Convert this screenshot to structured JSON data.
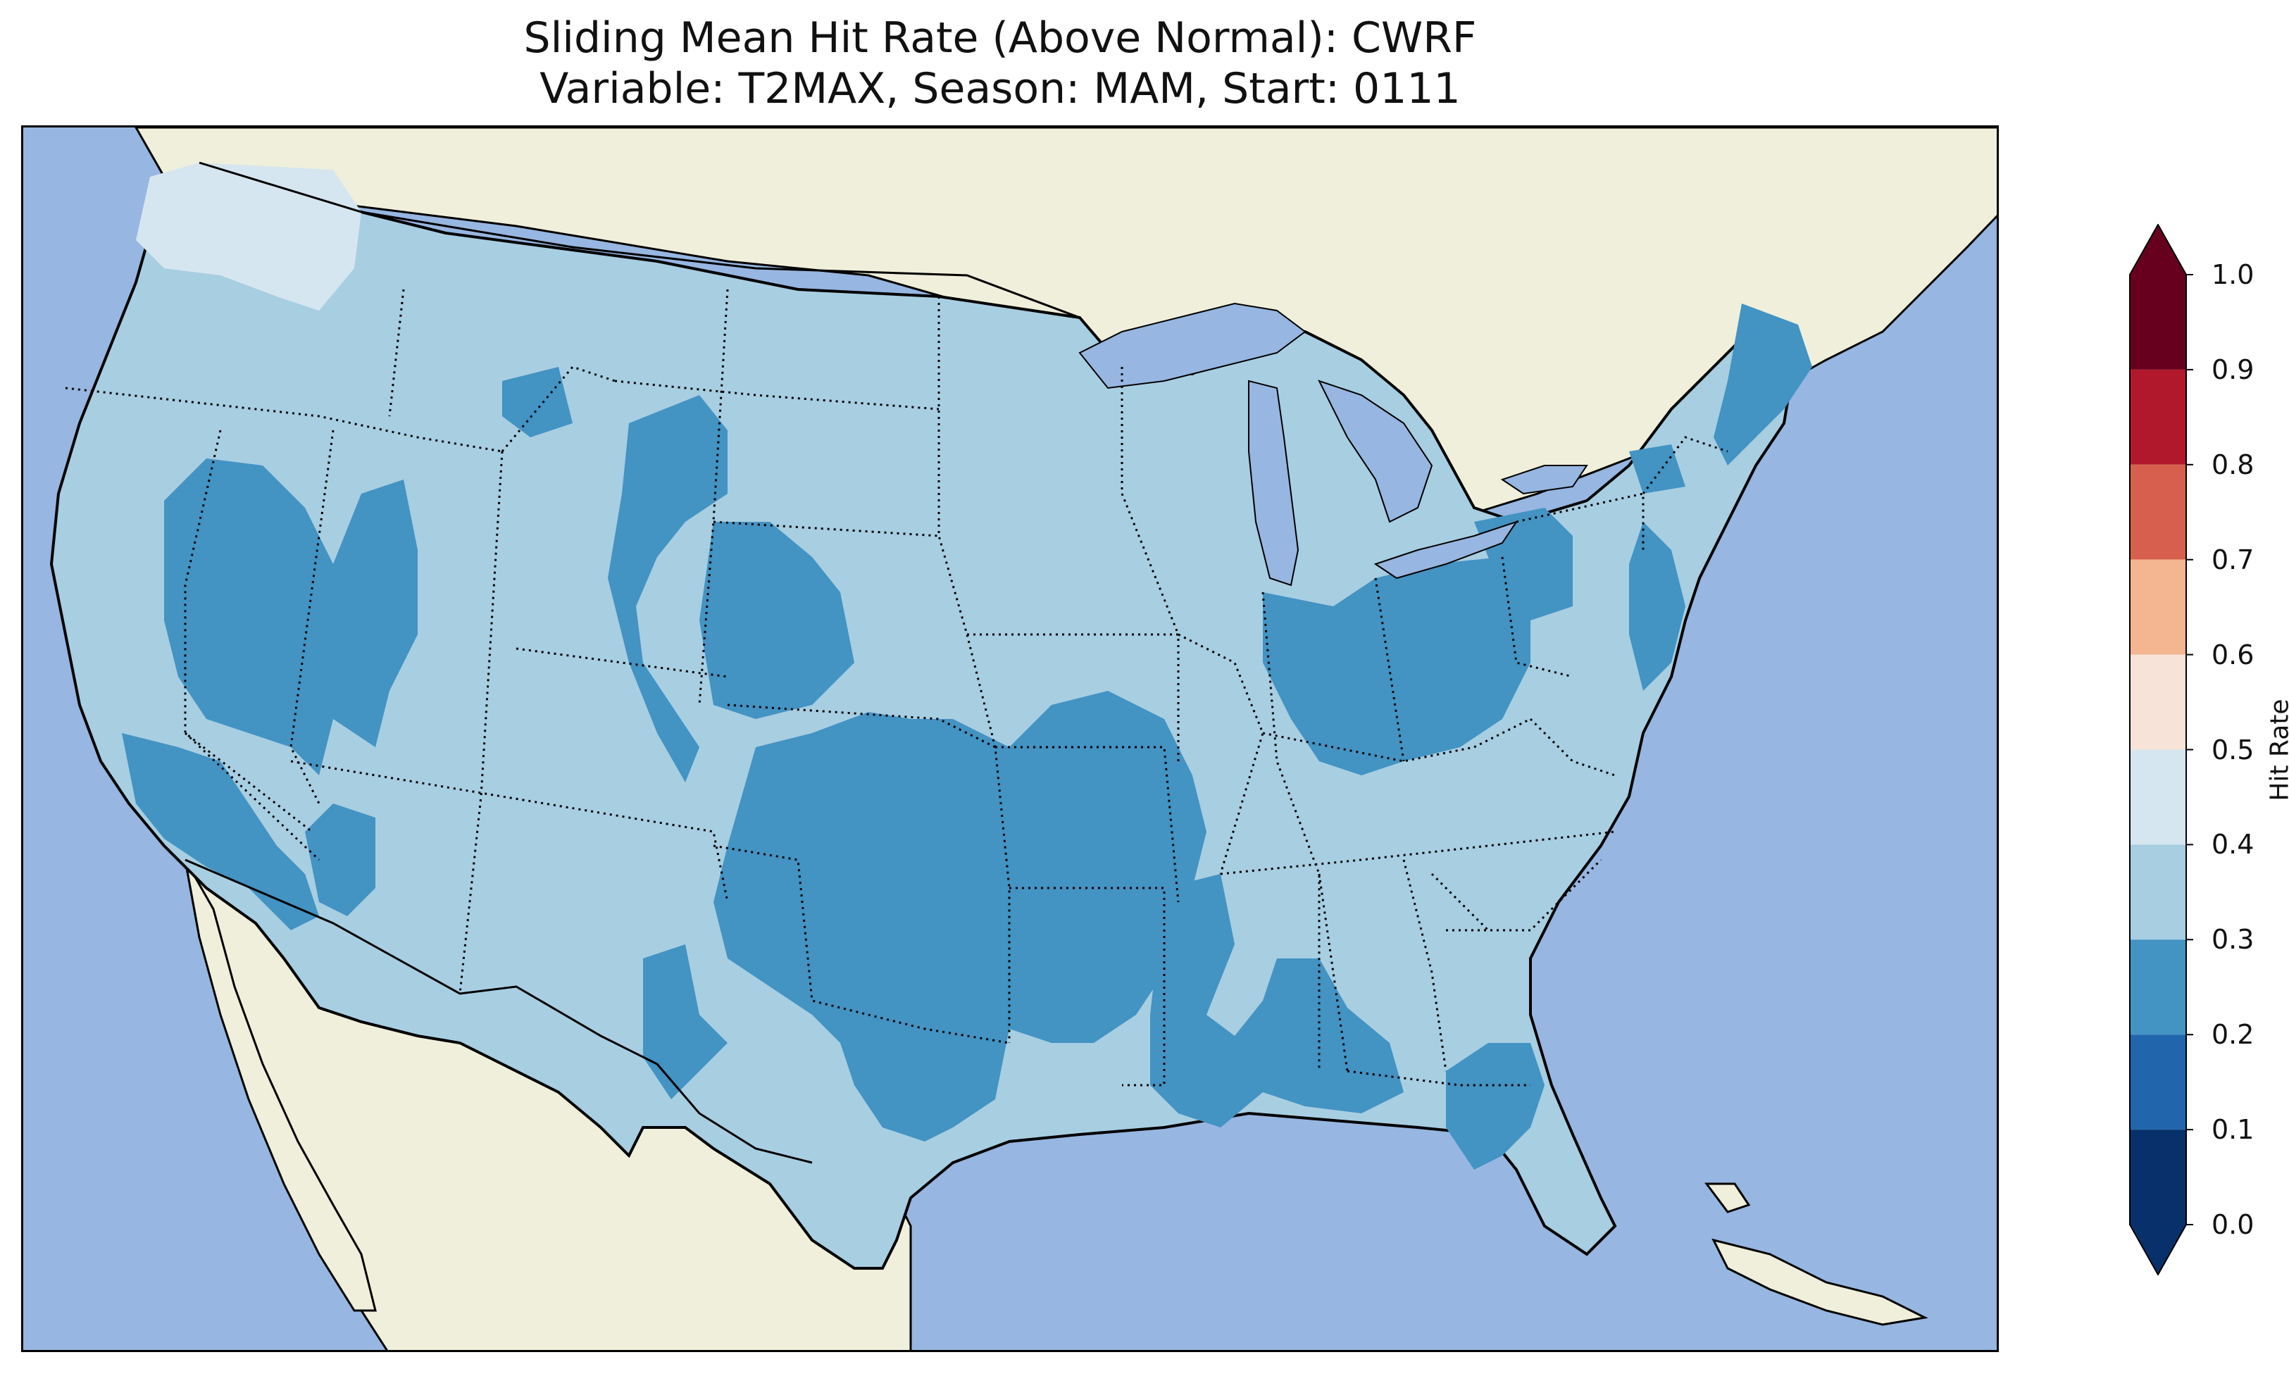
{
  "title": {
    "line1": "Sliding Mean Hit Rate (Above Normal): CWRF",
    "line2": "Variable: T2MAX, Season: MAM, Start: 0111"
  },
  "map": {
    "ocean_color": "#97b6e1",
    "land_color": "#efefdb",
    "lake_color": "#97b6e1",
    "regions": [
      {
        "name": "pacific-northwest-coast",
        "value_class": "0.4-0.5"
      },
      {
        "name": "western-us",
        "value_class": "0.2-0.3"
      },
      {
        "name": "great-basin",
        "value_class": "0.2-0.3"
      },
      {
        "name": "southern-california",
        "value_class": "0.2-0.3"
      },
      {
        "name": "wyoming-colorado",
        "value_class": "0.2-0.3"
      },
      {
        "name": "southern-plains",
        "value_class": "0.2-0.3"
      },
      {
        "name": "ohio-valley",
        "value_class": "0.2-0.3"
      },
      {
        "name": "southeast-georgia",
        "value_class": "0.2-0.3"
      },
      {
        "name": "new-england",
        "value_class": "0.2-0.3"
      },
      {
        "name": "remaining-conus",
        "value_class": "0.3-0.4"
      }
    ]
  },
  "colorbar": {
    "label": "Hit Rate",
    "ticks": [
      "0.0",
      "0.1",
      "0.2",
      "0.3",
      "0.4",
      "0.5",
      "0.6",
      "0.7",
      "0.8",
      "0.9",
      "1.0"
    ],
    "colors": [
      "#08306b",
      "#2166ac",
      "#4393c3",
      "#a8cee2",
      "#d6e6f0",
      "#f7e3d8",
      "#f4b591",
      "#d6604d",
      "#b2182b",
      "#67001f"
    ],
    "extend": "both"
  }
}
